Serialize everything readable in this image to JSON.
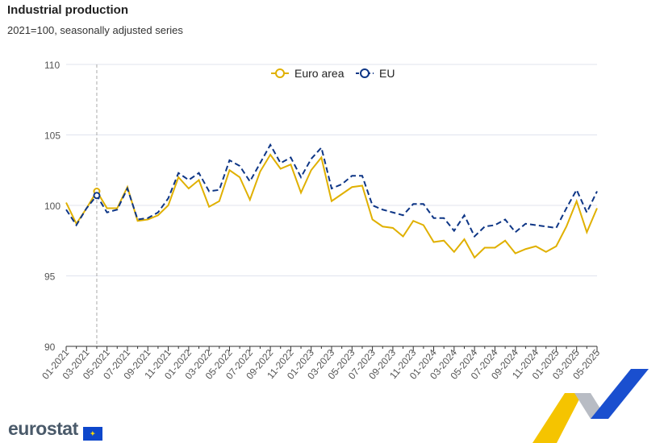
{
  "title": "Industrial production",
  "subtitle": "2021=100, seasonally adjusted series",
  "logo_text": "eurostat",
  "colors": {
    "euro_area": "#e0b000",
    "eu": "#0e3686",
    "grid": "#e0e3ee"
  },
  "chart_data": {
    "type": "line",
    "title": "Industrial production",
    "subtitle": "2021=100, seasonally adjusted series",
    "ylim": [
      90,
      110
    ],
    "yticks": [
      90,
      95,
      100,
      105,
      110
    ],
    "legend_position": "top-center",
    "highlight_month": "04-2021",
    "x": [
      "01-2021",
      "02-2021",
      "03-2021",
      "04-2021",
      "05-2021",
      "06-2021",
      "07-2021",
      "08-2021",
      "09-2021",
      "10-2021",
      "11-2021",
      "12-2021",
      "01-2022",
      "02-2022",
      "03-2022",
      "04-2022",
      "05-2022",
      "06-2022",
      "07-2022",
      "08-2022",
      "09-2022",
      "10-2022",
      "11-2022",
      "12-2022",
      "01-2023",
      "02-2023",
      "03-2023",
      "04-2023",
      "05-2023",
      "06-2023",
      "07-2023",
      "08-2023",
      "09-2023",
      "10-2023",
      "11-2023",
      "12-2023",
      "01-2024",
      "02-2024",
      "03-2024",
      "04-2024",
      "05-2024",
      "06-2024",
      "07-2024",
      "08-2024",
      "09-2024",
      "10-2024",
      "11-2024",
      "12-2024",
      "01-2025",
      "02-2025",
      "03-2025",
      "04-2025",
      "05-2025"
    ],
    "xtick_labels": [
      "01-2021",
      "03-2021",
      "05-2021",
      "07-2021",
      "09-2021",
      "11-2021",
      "01-2022",
      "03-2022",
      "05-2022",
      "07-2022",
      "09-2022",
      "11-2022",
      "01-2023",
      "03-2023",
      "05-2023",
      "07-2023",
      "09-2023",
      "11-2023",
      "01-2024",
      "03-2024",
      "05-2024",
      "07-2024",
      "09-2024",
      "11-2024",
      "01-2025",
      "03-2025",
      "05-2025"
    ],
    "series": [
      {
        "name": "Euro area",
        "values": [
          100.2,
          98.7,
          99.8,
          101.0,
          99.8,
          99.8,
          101.3,
          98.9,
          99.0,
          99.3,
          100.0,
          102.0,
          101.2,
          101.8,
          99.9,
          100.3,
          102.5,
          102.0,
          100.4,
          102.4,
          103.6,
          102.6,
          102.9,
          100.9,
          102.5,
          103.4,
          100.3,
          100.8,
          101.3,
          101.4,
          99.0,
          98.5,
          98.4,
          97.8,
          98.9,
          98.6,
          97.4,
          97.5,
          96.7,
          97.6,
          96.3,
          97.0,
          97.0,
          97.5,
          96.6,
          96.9,
          97.1,
          96.7,
          97.1,
          98.5,
          100.3,
          98.1,
          99.8
        ]
      },
      {
        "name": "EU",
        "values": [
          99.7,
          98.6,
          99.8,
          100.7,
          99.5,
          99.7,
          101.2,
          99.0,
          99.1,
          99.5,
          100.5,
          102.3,
          101.8,
          102.3,
          101.0,
          101.1,
          103.2,
          102.8,
          101.7,
          103.0,
          104.3,
          103.0,
          103.4,
          102.0,
          103.3,
          104.1,
          101.2,
          101.5,
          102.1,
          102.1,
          100.0,
          99.7,
          99.5,
          99.3,
          100.1,
          100.1,
          99.1,
          99.1,
          98.2,
          99.3,
          97.8,
          98.5,
          98.6,
          99.0,
          98.1,
          98.7,
          98.6,
          98.5,
          98.4,
          99.8,
          101.1,
          99.5,
          101.0
        ]
      }
    ]
  }
}
